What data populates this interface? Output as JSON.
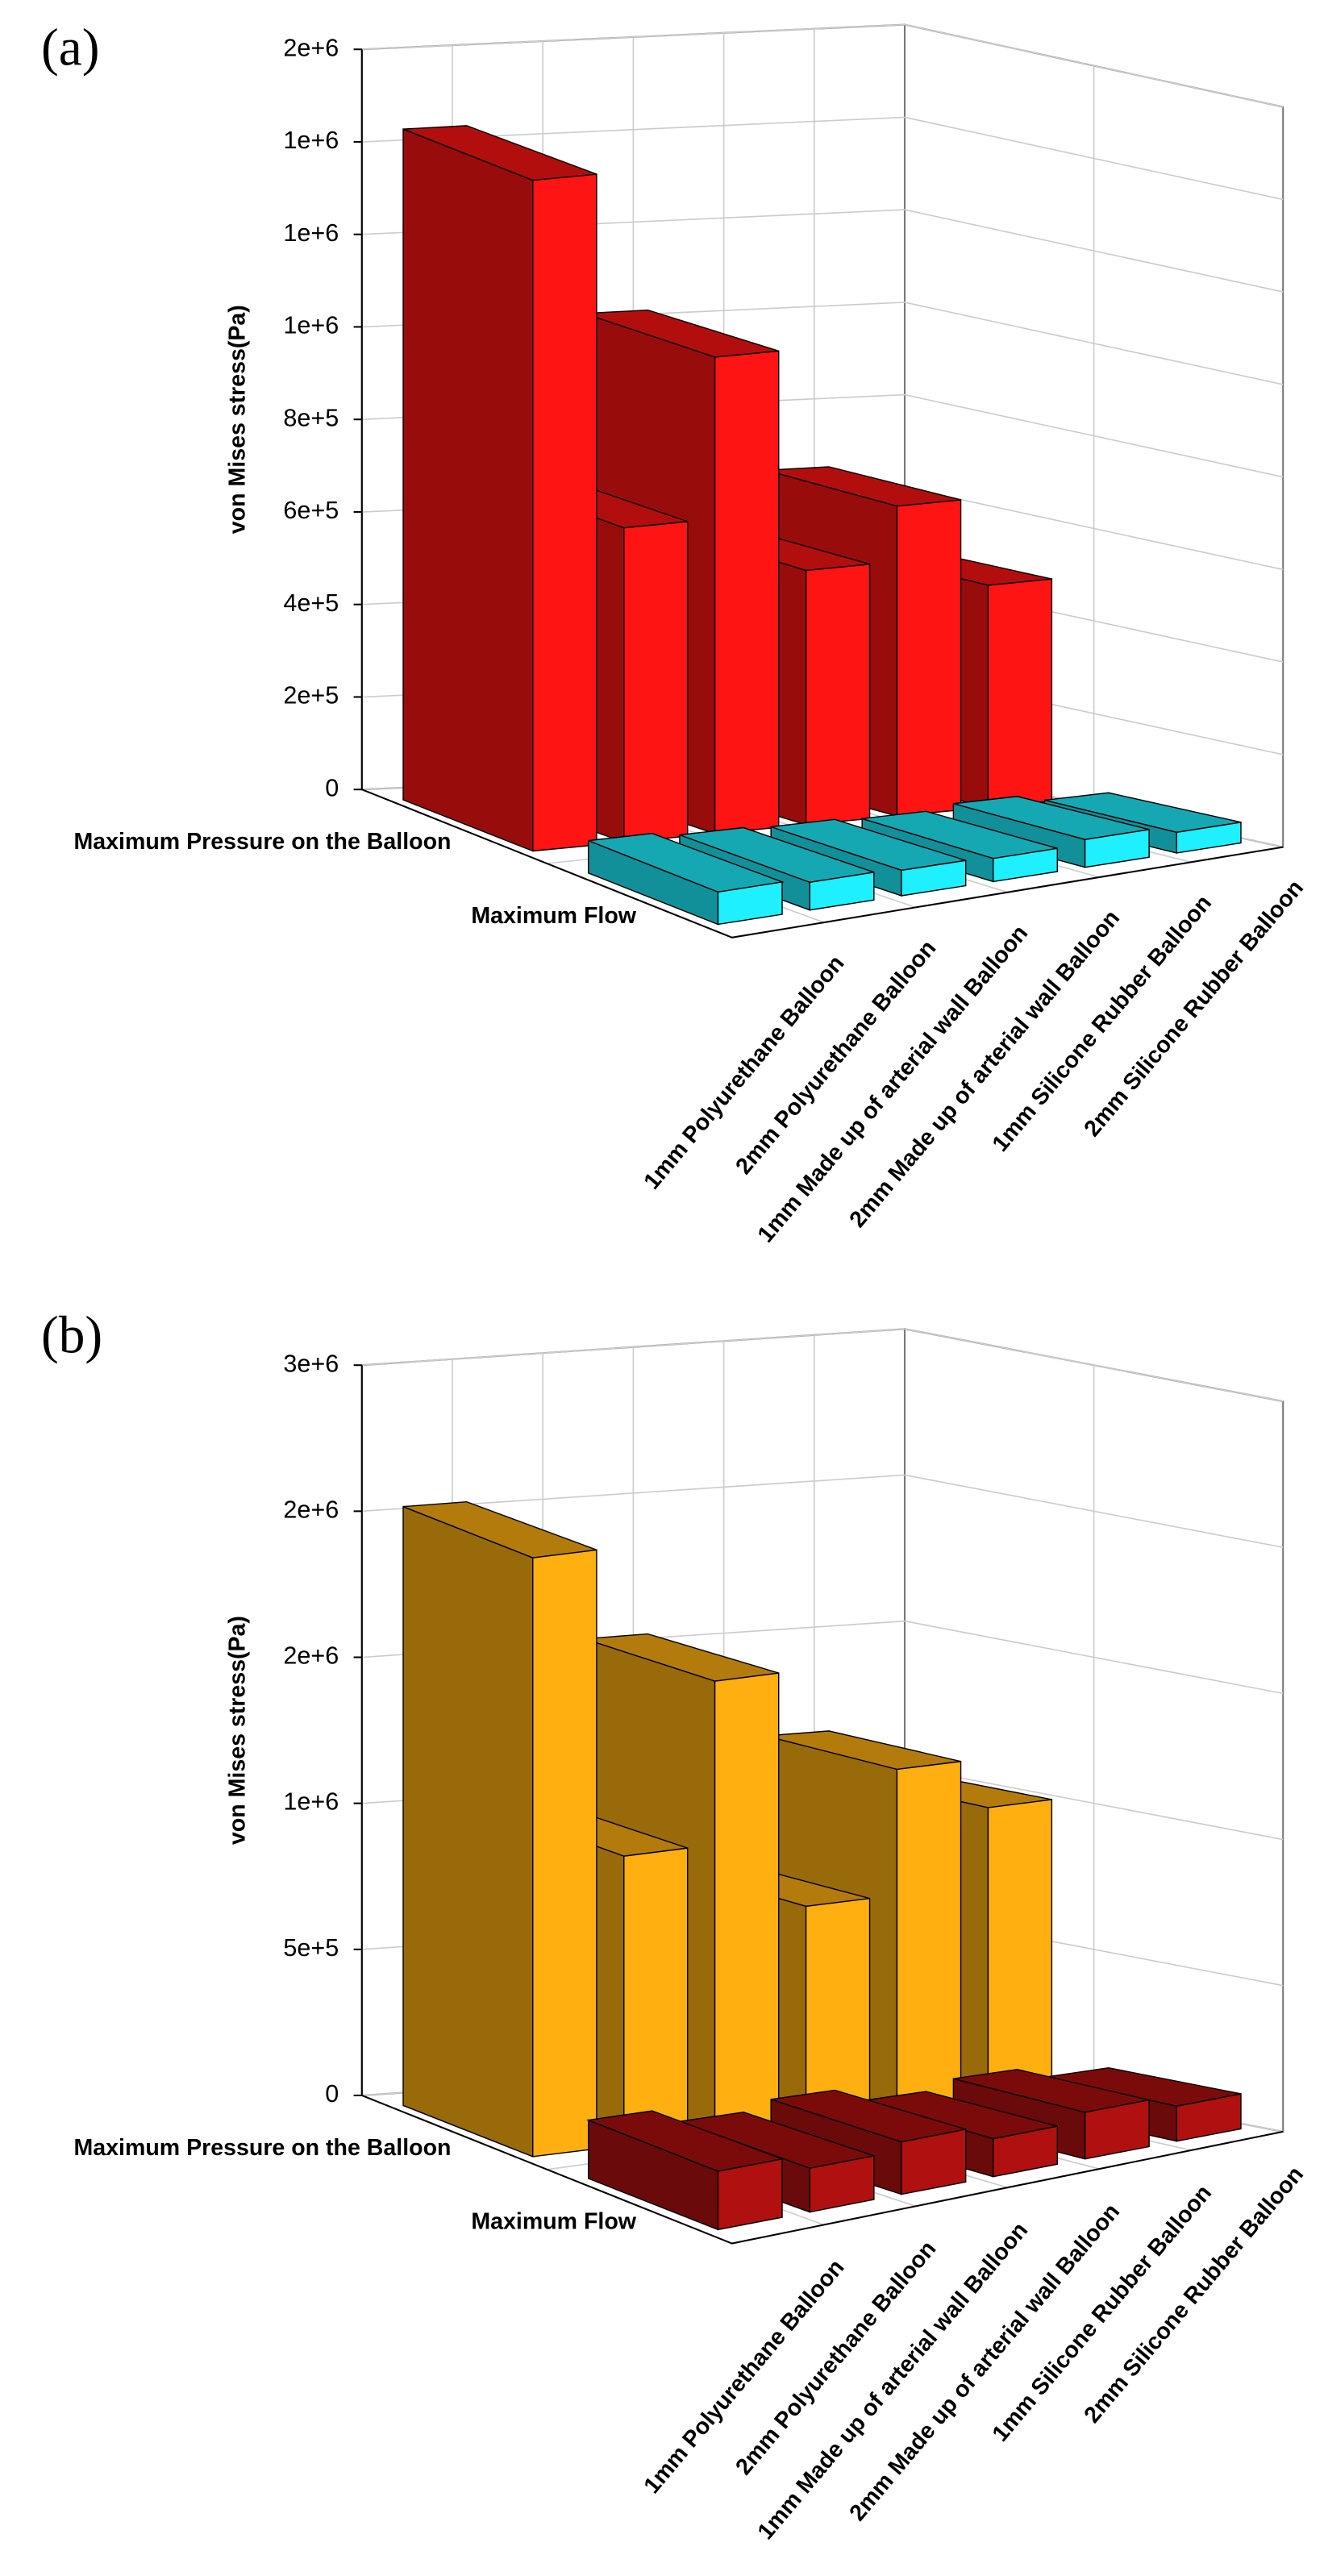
{
  "chart_data": [
    {
      "type": "bar3d",
      "panel_label": "(a)",
      "ylabel": "von Mises stress(Pa)",
      "categories": [
        "1mm Polyurethane Balloon",
        "2mm Polyurethane Balloon",
        "1mm Made up of arterial wall Balloon",
        "2mm Made up of arterial wall Balloon",
        "1mm Silicone Rubber Balloon",
        "2mm Silicone Rubber Balloon"
      ],
      "series": [
        {
          "name": "Maximum Pressure on the Balloon",
          "color": "#ff1414",
          "values": [
            1450000,
            680000,
            1030000,
            550000,
            670000,
            480000
          ]
        },
        {
          "name": "Maximum Flow",
          "color": "#1ef0ff",
          "values": [
            70000,
            60000,
            55000,
            50000,
            60000,
            45000
          ]
        }
      ],
      "ylim": [
        0,
        1600000
      ],
      "yticks": [
        0,
        {
          "value": 200000,
          "label": "2e+5"
        },
        {
          "value": 400000,
          "label": "4e+5"
        },
        {
          "value": 600000,
          "label": "6e+5"
        },
        {
          "value": 800000,
          "label": "8e+5"
        },
        {
          "value": 1000000,
          "label": "1e+6"
        },
        {
          "value": 1200000,
          "label": "1e+6"
        },
        {
          "value": 1400000,
          "label": "1e+6"
        },
        {
          "value": 1600000,
          "label": "2e+6"
        }
      ],
      "grid": true
    },
    {
      "type": "bar3d",
      "panel_label": "(b)",
      "ylabel": "von Mises stress(Pa)",
      "categories": [
        "1mm Polyurethane Balloon",
        "2mm Polyurethane Balloon",
        "1mm Made up of arterial wall Balloon",
        "2mm Made up of arterial wall Balloon",
        "1mm Silicone Rubber Balloon",
        "2mm Silicone Rubber Balloon"
      ],
      "series": [
        {
          "name": "Maximum Pressure on the Balloon",
          "color": "#ffb010",
          "values": [
            2050000,
            990000,
            1550000,
            740000,
            1170000,
            1000000
          ]
        },
        {
          "name": "Maximum Flow",
          "color": "#b01010",
          "values": [
            200000,
            150000,
            180000,
            130000,
            160000,
            120000
          ]
        }
      ],
      "ylim": [
        0,
        2500000
      ],
      "yticks": [
        0,
        {
          "value": 500000,
          "label": "5e+5"
        },
        {
          "value": 1000000,
          "label": "1e+6"
        },
        {
          "value": 1500000,
          "label": "2e+6"
        },
        {
          "value": 2000000,
          "label": "2e+6"
        },
        {
          "value": 2500000,
          "label": "3e+6"
        }
      ],
      "grid": true
    }
  ]
}
